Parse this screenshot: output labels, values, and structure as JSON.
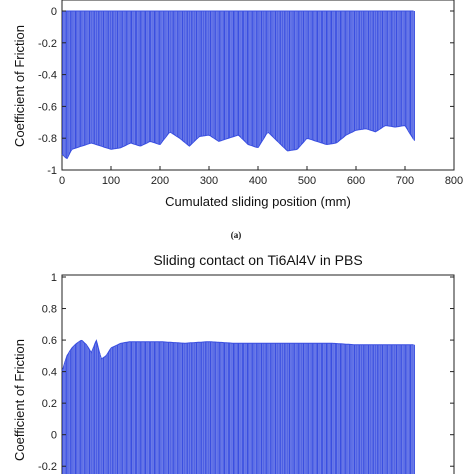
{
  "panel_label_a": "(a)",
  "chart_data": [
    {
      "type": "line",
      "title": "",
      "xlabel": "Cumulated sliding position (mm)",
      "ylabel": "Coefficient of Friction",
      "xlim": [
        0,
        800
      ],
      "ylim": [
        -1,
        0
      ],
      "x_ticks": [
        0,
        100,
        200,
        300,
        400,
        500,
        600,
        700,
        800
      ],
      "y_ticks": [
        -1,
        -0.8,
        -0.6,
        -0.4,
        -0.2,
        0
      ],
      "x_tick_labels": [
        "0",
        "100",
        "200",
        "300",
        "400",
        "500",
        "600",
        "700",
        "800"
      ],
      "y_tick_labels": [
        "-1",
        "-0.8",
        "-0.6",
        "-0.4",
        "-0.2",
        "0"
      ],
      "color": "#3a4fe0",
      "series": [
        {
          "x": [
            0,
            10,
            20,
            40,
            60,
            80,
            100,
            120,
            140,
            160,
            180,
            200,
            220,
            240,
            260,
            280,
            300,
            320,
            340,
            360,
            380,
            400,
            420,
            440,
            460,
            480,
            500,
            520,
            540,
            560,
            580,
            600,
            620,
            640,
            660,
            680,
            700,
            720
          ],
          "y_low": [
            -0.9,
            -0.93,
            -0.87,
            -0.85,
            -0.83,
            -0.85,
            -0.87,
            -0.86,
            -0.83,
            -0.85,
            -0.82,
            -0.84,
            -0.76,
            -0.8,
            -0.85,
            -0.79,
            -0.78,
            -0.82,
            -0.8,
            -0.78,
            -0.84,
            -0.86,
            -0.76,
            -0.82,
            -0.88,
            -0.87,
            -0.8,
            -0.82,
            -0.84,
            -0.83,
            -0.78,
            -0.75,
            -0.74,
            -0.76,
            -0.72,
            -0.73,
            -0.72,
            -0.82
          ],
          "y_high": [
            0,
            0,
            0,
            0,
            0,
            0,
            0,
            0,
            0,
            0,
            0,
            0,
            0,
            0,
            0,
            0,
            0,
            0,
            0,
            0,
            0,
            0,
            0,
            0,
            0,
            0,
            0,
            0,
            0,
            0,
            0,
            0,
            0,
            0,
            0,
            0,
            0,
            0
          ]
        }
      ]
    },
    {
      "type": "line",
      "title": "Sliding contact on Ti6Al4V in PBS",
      "xlabel": "",
      "ylabel": "Coefficient of Friction",
      "xlim": [
        0,
        800
      ],
      "ylim": [
        -0.3,
        1
      ],
      "y_ticks": [
        -0.2,
        0,
        0.2,
        0.4,
        0.6,
        0.8,
        1
      ],
      "y_tick_labels": [
        "-0.2",
        "0",
        "0.2",
        "0.4",
        "0.6",
        "0.8",
        "1"
      ],
      "color": "#3a4fe0",
      "series": [
        {
          "x": [
            0,
            5,
            10,
            20,
            30,
            40,
            50,
            60,
            70,
            80,
            90,
            100,
            120,
            140,
            160,
            180,
            200,
            250,
            300,
            350,
            400,
            450,
            500,
            550,
            600,
            650,
            700,
            720
          ],
          "y_high": [
            0.4,
            0.45,
            0.5,
            0.55,
            0.58,
            0.6,
            0.57,
            0.52,
            0.6,
            0.48,
            0.5,
            0.55,
            0.58,
            0.59,
            0.59,
            0.59,
            0.59,
            0.58,
            0.59,
            0.58,
            0.58,
            0.58,
            0.58,
            0.58,
            0.57,
            0.57,
            0.57,
            0.57
          ],
          "y_low": [
            -0.3,
            -0.3,
            -0.3,
            -0.3,
            -0.3,
            -0.3,
            -0.3,
            -0.3,
            -0.3,
            -0.3,
            -0.3,
            -0.3,
            -0.3,
            -0.3,
            -0.3,
            -0.3,
            -0.3,
            -0.3,
            -0.3,
            -0.3,
            -0.3,
            -0.3,
            -0.3,
            -0.3,
            -0.3,
            -0.3,
            -0.3,
            -0.3
          ]
        }
      ]
    }
  ]
}
